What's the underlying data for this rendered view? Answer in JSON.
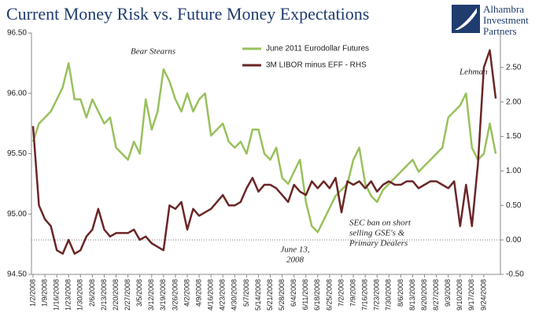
{
  "chart_data": {
    "type": "line",
    "title": "Current Money Risk vs. Future Money Expectations",
    "logo": [
      "Alhambra",
      "Investment",
      "Partners"
    ],
    "categories": [
      "1/2/2008",
      null,
      "1/9/2008",
      null,
      "1/16/2008",
      null,
      "1/23/2008",
      null,
      "1/30/2008",
      null,
      "2/6/2008",
      null,
      "2/13/2008",
      null,
      "2/20/2008",
      null,
      "2/27/2008",
      null,
      "3/5/2008",
      null,
      "3/12/2008",
      null,
      "3/19/2008",
      null,
      "3/26/2008",
      null,
      "4/2/2008",
      null,
      "4/9/2008",
      null,
      "4/16/2008",
      null,
      "4/23/2008",
      null,
      "4/30/2008",
      null,
      "5/7/2008",
      null,
      "5/14/2008",
      null,
      "5/21/2008",
      null,
      "5/28/2008",
      null,
      "6/4/2008",
      null,
      "6/11/2008",
      null,
      "6/18/2008",
      null,
      "6/25/2008",
      null,
      "7/2/2008",
      null,
      "7/9/2008",
      null,
      "7/16/2008",
      null,
      "7/23/2008",
      null,
      "7/30/2008",
      null,
      "8/6/2008",
      null,
      "8/13/2008",
      null,
      "8/20/2008",
      null,
      "8/27/2008",
      null,
      "9/3/2008",
      null,
      "9/10/2008",
      null,
      "9/17/2008",
      null,
      "9/24/2008",
      null,
      null
    ],
    "series": [
      {
        "name": "June 2011 Eurodollar Futures",
        "color": "#98c15c",
        "axis": "y",
        "values": [
          95.6,
          95.75,
          95.8,
          95.85,
          95.95,
          96.05,
          96.25,
          95.95,
          95.95,
          95.8,
          95.95,
          95.85,
          95.75,
          95.8,
          95.55,
          95.5,
          95.45,
          95.6,
          95.5,
          95.95,
          95.7,
          95.85,
          96.2,
          96.1,
          95.95,
          95.85,
          96.0,
          95.85,
          95.95,
          96.0,
          95.65,
          95.7,
          95.75,
          95.6,
          95.55,
          95.6,
          95.5,
          95.7,
          95.7,
          95.5,
          95.45,
          95.55,
          95.3,
          95.25,
          95.35,
          95.45,
          95.1,
          94.9,
          94.85,
          94.95,
          95.05,
          95.15,
          95.2,
          95.25,
          95.45,
          95.55,
          95.25,
          95.15,
          95.1,
          95.2,
          95.25,
          95.3,
          95.35,
          95.4,
          95.45,
          95.35,
          95.4,
          95.45,
          95.5,
          95.55,
          95.8,
          95.85,
          95.9,
          96.0,
          95.55,
          95.45,
          95.5,
          95.75,
          95.5
        ]
      },
      {
        "name": "3M LIBOR minus EFF - RHS",
        "color": "#6b2626",
        "axis": "y2",
        "values": [
          1.65,
          0.5,
          0.3,
          0.2,
          -0.15,
          -0.2,
          0.0,
          -0.2,
          -0.15,
          0.05,
          0.15,
          0.45,
          0.15,
          0.05,
          0.1,
          0.1,
          0.1,
          0.15,
          0.0,
          0.05,
          -0.05,
          -0.1,
          -0.15,
          0.5,
          0.45,
          0.55,
          0.15,
          0.45,
          0.35,
          0.4,
          0.45,
          0.55,
          0.65,
          0.5,
          0.5,
          0.55,
          0.75,
          0.9,
          0.7,
          0.8,
          0.8,
          0.75,
          0.65,
          0.55,
          0.8,
          0.7,
          0.65,
          0.85,
          0.75,
          0.85,
          0.75,
          0.9,
          0.4,
          0.85,
          0.8,
          0.85,
          0.75,
          0.85,
          0.7,
          0.8,
          0.85,
          0.8,
          0.8,
          0.85,
          0.85,
          0.75,
          0.8,
          0.85,
          0.85,
          0.8,
          0.75,
          0.85,
          0.2,
          0.8,
          0.2,
          1.1,
          2.5,
          2.75,
          2.05
        ]
      }
    ],
    "ylim": [
      94.5,
      96.5
    ],
    "yticks": [
      {
        "value": 94.5,
        "label": "94.50"
      },
      {
        "value": 95,
        "label": "95.00"
      },
      {
        "value": 95.5,
        "label": "95.50"
      },
      {
        "value": 96,
        "label": "96.00"
      },
      {
        "value": 96.5,
        "label": "96.50"
      }
    ],
    "y2lim": [
      -0.5,
      3.0
    ],
    "y2ticks": [
      {
        "value": -0.5,
        "label": "-0.50"
      },
      {
        "value": 0,
        "label": "0.00"
      },
      {
        "value": 0.5,
        "label": "0.50"
      },
      {
        "value": 1,
        "label": "1.00"
      },
      {
        "value": 1.5,
        "label": "1.50"
      },
      {
        "value": 2,
        "label": "2.00"
      },
      {
        "value": 2.5,
        "label": "2.50"
      }
    ],
    "annotations": {
      "bear": "Bear Stearns",
      "lehman": "Lehman",
      "june": [
        "June 13,",
        "2008"
      ],
      "sec": [
        "SEC ban on short",
        "selling GSE's &",
        "Primary Dealers"
      ]
    },
    "legend": "top-center"
  }
}
